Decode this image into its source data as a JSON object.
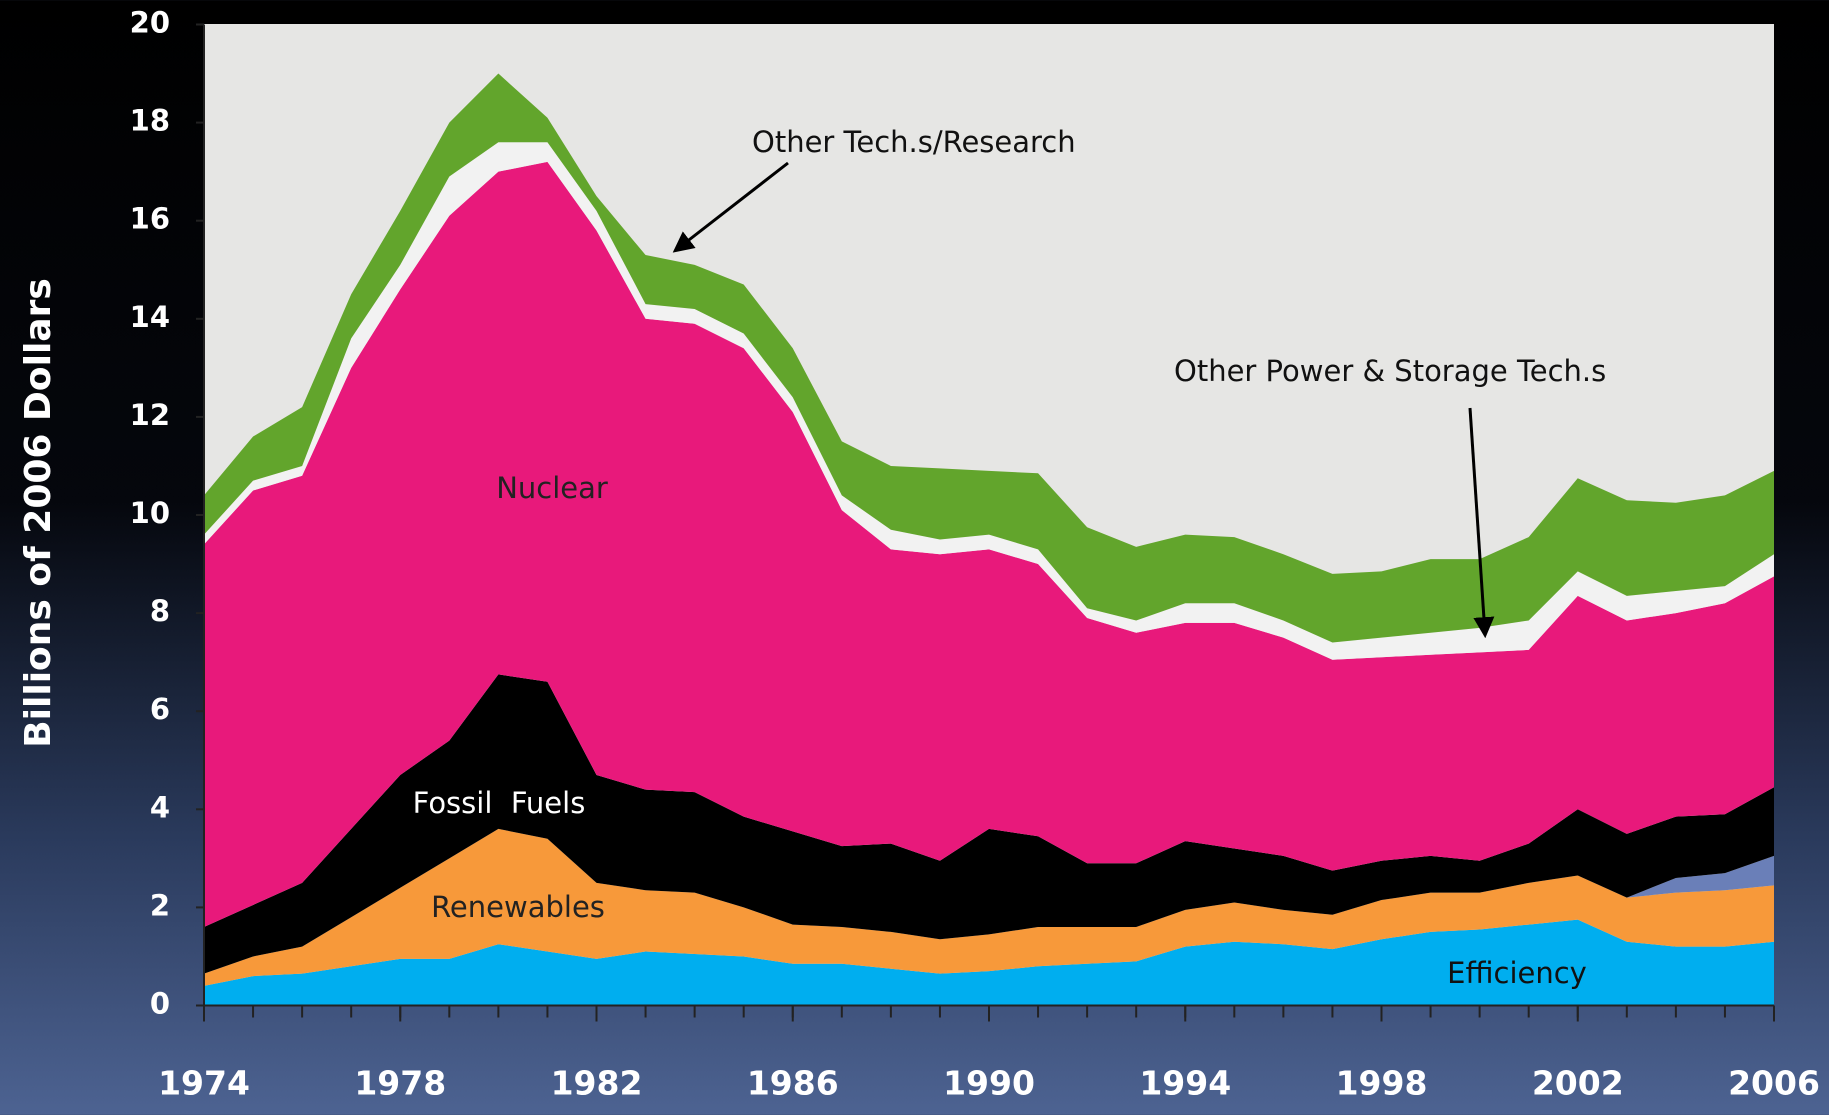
{
  "chart_data": {
    "type": "stacked_area",
    "y_label": "Billions of 2006 Dollars",
    "x": [
      1974,
      1975,
      1976,
      1977,
      1978,
      1979,
      1980,
      1981,
      1982,
      1983,
      1984,
      1985,
      1986,
      1987,
      1988,
      1989,
      1990,
      1991,
      1992,
      1993,
      1994,
      1995,
      1996,
      1997,
      1998,
      1999,
      2000,
      2001,
      2002,
      2003,
      2004,
      2005,
      2006
    ],
    "xlim": [
      1974,
      2006
    ],
    "xticks": [
      1974,
      1978,
      1982,
      1986,
      1990,
      1994,
      1998,
      2002,
      2006
    ],
    "ylim": [
      0,
      20
    ],
    "yticks": [
      0,
      2,
      4,
      6,
      8,
      10,
      12,
      14,
      16,
      18,
      20
    ],
    "grid": false,
    "series": [
      {
        "name": "Efficiency",
        "color": "#00aeef",
        "values": [
          0.4,
          0.6,
          0.65,
          0.8,
          0.95,
          0.95,
          1.25,
          1.1,
          0.95,
          1.1,
          1.05,
          1.0,
          0.85,
          0.85,
          0.75,
          0.65,
          0.7,
          0.8,
          0.85,
          0.9,
          1.2,
          1.3,
          1.25,
          1.15,
          1.35,
          1.5,
          1.55,
          1.65,
          1.75,
          1.3,
          1.2,
          1.2,
          1.3
        ]
      },
      {
        "name": "Renewables",
        "color": "#f7993a",
        "values": [
          0.25,
          0.4,
          0.55,
          1.0,
          1.45,
          2.05,
          2.35,
          2.3,
          1.55,
          1.25,
          1.25,
          1.0,
          0.8,
          0.75,
          0.75,
          0.7,
          0.75,
          0.8,
          0.75,
          0.7,
          0.75,
          0.8,
          0.7,
          0.7,
          0.8,
          0.8,
          0.75,
          0.85,
          0.9,
          0.9,
          1.1,
          1.15,
          1.15
        ]
      },
      {
        "color": "#6a7fb8",
        "values": [
          0,
          0,
          0,
          0,
          0,
          0,
          0,
          0,
          0,
          0,
          0,
          0,
          0,
          0,
          0,
          0,
          0,
          0,
          0,
          0,
          0,
          0,
          0,
          0,
          0,
          0,
          0,
          0,
          0,
          0,
          0.3,
          0.35,
          0.6
        ]
      },
      {
        "name": "Fossil  Fuels",
        "color": "#000000",
        "values": [
          0.95,
          1.05,
          1.3,
          1.8,
          2.3,
          2.4,
          3.15,
          3.2,
          2.2,
          2.05,
          2.05,
          1.85,
          1.9,
          1.65,
          1.8,
          1.6,
          2.15,
          1.85,
          1.3,
          1.3,
          1.4,
          1.1,
          1.1,
          0.9,
          0.8,
          0.75,
          0.65,
          0.8,
          1.35,
          1.3,
          1.25,
          1.2,
          1.4
        ]
      },
      {
        "name": "Nuclear",
        "color": "#e8197b",
        "values": [
          7.8,
          8.45,
          8.3,
          9.4,
          9.9,
          10.7,
          10.25,
          10.6,
          11.1,
          9.6,
          9.55,
          9.55,
          8.55,
          6.85,
          6.0,
          6.25,
          5.7,
          5.55,
          5.0,
          4.7,
          4.45,
          4.6,
          4.45,
          4.3,
          4.15,
          4.1,
          4.25,
          3.95,
          4.35,
          4.35,
          4.15,
          4.3,
          4.3
        ]
      },
      {
        "name": "Other Power & Storage Tech.s",
        "color": "#f2f2f2",
        "values": [
          0.2,
          0.2,
          0.2,
          0.6,
          0.5,
          0.8,
          0.6,
          0.4,
          0.4,
          0.3,
          0.3,
          0.3,
          0.3,
          0.3,
          0.4,
          0.3,
          0.3,
          0.3,
          0.2,
          0.25,
          0.4,
          0.4,
          0.35,
          0.35,
          0.4,
          0.45,
          0.5,
          0.6,
          0.5,
          0.5,
          0.45,
          0.35,
          0.45
        ]
      },
      {
        "name": "Other Tech.s/Research",
        "color": "#62a52c",
        "values": [
          0.8,
          0.9,
          1.2,
          0.9,
          1.1,
          1.1,
          1.4,
          0.5,
          0.3,
          1.0,
          0.9,
          1.0,
          1.0,
          1.1,
          1.3,
          1.45,
          1.3,
          1.55,
          1.65,
          1.5,
          1.4,
          1.35,
          1.35,
          1.4,
          1.35,
          1.5,
          1.4,
          1.7,
          1.9,
          1.95,
          1.8,
          1.85,
          1.7
        ]
      }
    ]
  }
}
